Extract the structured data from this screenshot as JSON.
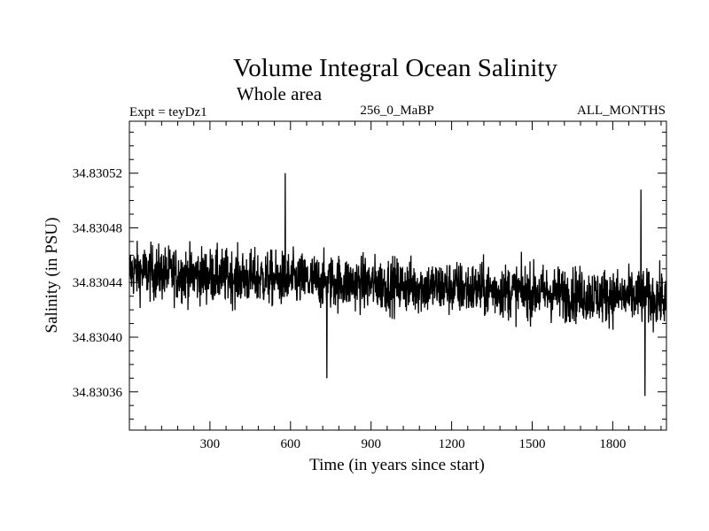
{
  "chart_data": {
    "type": "line",
    "title": "Volume Integral Ocean Salinity",
    "subtitle": "Whole area",
    "experiment": "Expt = teyDz1",
    "period": "256_0_MaBP",
    "season": "ALL_MONTHS",
    "xlabel": "Time (in years since start)",
    "ylabel": "Salinity (in PSU)",
    "xlim": [
      0,
      2000
    ],
    "ylim": [
      34.830332,
      34.830558
    ],
    "xticks": [
      300,
      600,
      900,
      1200,
      1500,
      1800
    ],
    "xtick_labels": [
      "300",
      "600",
      "900",
      "1200",
      "1500",
      "1800"
    ],
    "yticks": [
      34.83036,
      34.8304,
      34.83044,
      34.83048,
      34.83052
    ],
    "ytick_labels": [
      "34.83036",
      "34.83040",
      "34.83044",
      "34.83048",
      "34.83052"
    ],
    "series": [
      {
        "name": "Salinity",
        "color": "#000000",
        "mean_start": 34.830448,
        "mean_end": 34.830428,
        "noise_amplitude": 2.2e-05,
        "n_points": 2000,
        "peaks": [
          {
            "x": 580,
            "y": 34.83052
          },
          {
            "x": 735,
            "y": 34.83037
          },
          {
            "x": 1905,
            "y": 34.830508
          },
          {
            "x": 1920,
            "y": 34.830357
          }
        ]
      }
    ]
  }
}
